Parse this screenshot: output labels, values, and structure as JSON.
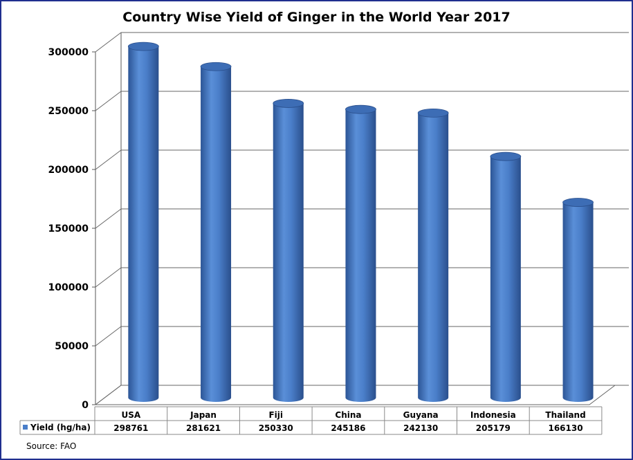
{
  "chart_data": {
    "type": "bar",
    "title": "Country Wise Yield of Ginger in the World Year 2017",
    "categories": [
      "USA",
      "Japan",
      "Fiji",
      "China",
      "Guyana",
      "Indonesia",
      "Thailand"
    ],
    "series": [
      {
        "name": "Yield (hg/ha)",
        "values": [
          298761,
          281621,
          250330,
          245186,
          242130,
          205179,
          166130
        ],
        "color": "#4a7ec9"
      }
    ],
    "ylim": [
      0,
      300000
    ],
    "yticks": [
      "0",
      "50000",
      "100000",
      "150000",
      "200000",
      "250000",
      "300000"
    ],
    "grid": true,
    "legend": "data-table",
    "source": "Source: FAO"
  }
}
